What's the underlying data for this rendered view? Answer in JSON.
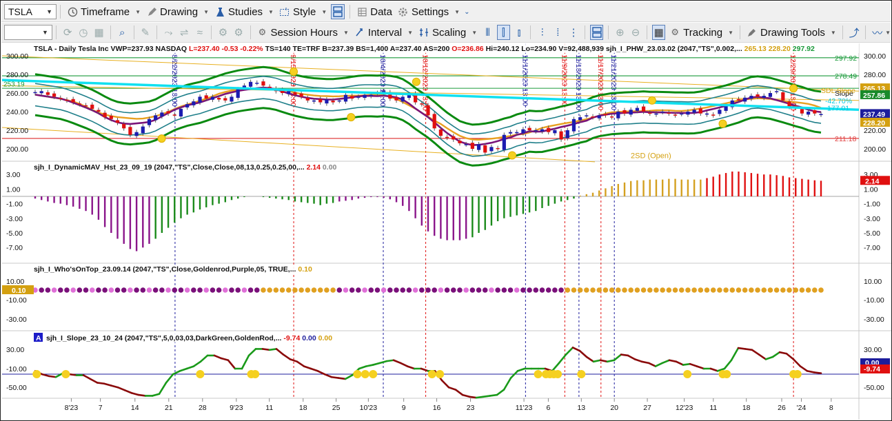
{
  "toolbar1": {
    "symbol": "TSLA",
    "menus": [
      {
        "label": "Timeframe",
        "icon": "clock-icon"
      },
      {
        "label": "Drawing",
        "icon": "pencil-icon"
      },
      {
        "label": "Studies",
        "icon": "studies-icon"
      },
      {
        "label": "Style",
        "icon": "style-icon"
      },
      {
        "label": "Data",
        "icon": "data-icon"
      },
      {
        "label": "Settings",
        "icon": "gear-icon"
      }
    ]
  },
  "toolbar2": {
    "session_hours": "Session Hours",
    "interval": "Interval",
    "scaling": "Scaling",
    "tracking": "Tracking",
    "drawing_tools": "Drawing Tools"
  },
  "price_pane": {
    "header": [
      {
        "t": "TSLA - Daily  Tesla Inc  VWP=237.93  NASDAQ",
        "c": "#111"
      },
      {
        "t": "L=237.40  -0.53  -0.22%",
        "c": "#e01010"
      },
      {
        "t": "TS=140  TE=TRF  B=237.39  BS=1,400  A=237.40  AS=200",
        "c": "#111"
      },
      {
        "t": "O=236.86",
        "c": "#e01010"
      },
      {
        "t": "Hi=240.12   Lo=234.90   V=92,488,939   sjh_I_PHW_23.03.02 (2047,\"TS\",0.002,...",
        "c": "#111"
      },
      {
        "t": "265.13",
        "c": "#d4a010"
      },
      {
        "t": "228.20",
        "c": "#d4a010"
      },
      {
        "t": "297.92",
        "c": "#1a9a3a"
      }
    ],
    "yticks": [
      "300.00",
      "280.00",
      "260.00",
      "240.00",
      "220.00",
      "200.00"
    ],
    "level_labels": [
      {
        "v": "297.92",
        "c": "#1a9a3a",
        "fg": "#1a9a3a"
      },
      {
        "v": "278.49",
        "c": "#1a9a3a",
        "fg": "#1a9a3a"
      },
      {
        "v": "211.18",
        "c": "#e04040",
        "fg": "#e04040"
      }
    ],
    "tags": [
      {
        "v": "265.13",
        "bg": "#d4a010",
        "fg": "#fff"
      },
      {
        "v": "257.86",
        "bg": "#1a8a2a",
        "fg": "#fff"
      },
      {
        "v": "237.49",
        "bg": "#1c1c9c",
        "fg": "#fff"
      },
      {
        "v": "228.20",
        "bg": "#d4a010",
        "fg": "#fff"
      }
    ],
    "side_notes": [
      {
        "t": "Slope",
        "c": "#111"
      },
      {
        "t": "SDL Slope",
        "c": "#d4a010"
      },
      {
        "t": "-42.70%",
        "c": "#00c8e0"
      },
      {
        "t": "177.01",
        "c": "#00c8e0"
      }
    ],
    "annotations": [
      {
        "t": "2SD (Open)",
        "c": "#d4a010"
      },
      {
        "t": "253.19",
        "c": "#1a9a3a"
      }
    ],
    "vlines": [
      {
        "t": "8/22/2023 13:00",
        "c": "#1c1c9c"
      },
      {
        "t": "9/15/2023 13:00",
        "c": "#e01010"
      },
      {
        "t": "10/4/2023 13:00",
        "c": "#1c1c9c"
      },
      {
        "t": "10/12/2023 13:00",
        "c": "#e01010"
      },
      {
        "t": "11/1/2023 13:00",
        "c": "#1c1c9c"
      },
      {
        "t": "11/9/2023 13:00",
        "c": "#e01010"
      },
      {
        "t": "11/13/2023 13:00",
        "c": "#1c1c9c"
      },
      {
        "t": "11/17/2023 13:00",
        "c": "#e01010"
      },
      {
        "t": "11/21/2023 13:00",
        "c": "#1c1c9c"
      },
      {
        "t": "12/29/2023 13:00",
        "c": "#e01010"
      }
    ]
  },
  "pane_mav": {
    "header": [
      {
        "t": "sjh_I_DynamicMAV_Hst_23_09_19 (2047,\"TS\",Close,Close,08,13,0.25,0.25,00,...",
        "c": "#111"
      },
      {
        "t": "2.14",
        "c": "#e01010"
      },
      {
        "t": "0.00",
        "c": "#888"
      }
    ],
    "yticks": [
      "3.00",
      "1.00",
      "-1.00",
      "-3.00",
      "-5.00",
      "-7.00"
    ],
    "tag": {
      "v": "2.14",
      "bg": "#e01010",
      "fg": "#fff"
    }
  },
  "pane_who": {
    "header": [
      {
        "t": "sjh_I_Who'sOnTop_23.09.14 (2047,\"TS\",Close,Goldenrod,Purple,05,  TRUE,...",
        "c": "#111"
      },
      {
        "t": "0.10",
        "c": "#d4a010"
      }
    ],
    "yticks": [
      "10.00",
      "-10.00",
      "-30.00"
    ],
    "tag": {
      "v": "0.10",
      "bg": "#d4a010",
      "fg": "#fff"
    }
  },
  "pane_slope": {
    "badge": "A",
    "header": [
      {
        "t": "sjh_I_Slope_23_10_24 (2047,\"TS\",5,0,03,03,DarkGreen,GoldenRod,...",
        "c": "#111"
      },
      {
        "t": "-9.74",
        "c": "#e01010"
      },
      {
        "t": "0.00",
        "c": "#1c1c9c"
      },
      {
        "t": "0.00",
        "c": "#d4a010"
      }
    ],
    "yticks": [
      "30.00",
      "-10.00",
      "-50.00"
    ],
    "tags": [
      {
        "v": "0.00",
        "bg": "#1c1c9c",
        "fg": "#fff"
      },
      {
        "v": "-9.74",
        "bg": "#e01010",
        "fg": "#fff"
      }
    ]
  },
  "xaxis": [
    "8'23",
    "7",
    "14",
    "21",
    "28",
    "9'23",
    "11",
    "18",
    "25",
    "10'23",
    "9",
    "16",
    "23",
    "11'23",
    "6",
    "13",
    "20",
    "27",
    "12'23",
    "11",
    "18",
    "26",
    "'24",
    "8"
  ],
  "chart_data": {
    "type": "candlestick",
    "symbol": "TSLA",
    "interval": "Daily",
    "last": 237.4,
    "open": 236.86,
    "high": 240.12,
    "low": 234.9,
    "volume": 92488939,
    "closes": [
      261,
      262,
      258,
      256,
      254,
      252,
      250,
      248,
      246,
      243,
      240,
      234,
      232,
      228,
      222,
      215,
      218,
      224,
      232,
      236,
      239,
      238,
      236,
      243,
      248,
      251,
      256,
      254,
      256,
      253,
      252,
      256,
      264,
      268,
      272,
      271,
      268,
      266,
      262,
      260,
      262,
      258,
      256,
      252,
      252,
      250,
      253,
      250,
      252,
      258,
      254,
      256,
      258,
      258,
      260,
      262,
      254,
      252,
      256,
      258,
      250,
      248,
      236,
      222,
      214,
      212,
      210,
      206,
      205,
      200,
      205,
      196,
      202,
      200,
      215,
      218,
      218,
      221,
      220,
      220,
      221,
      218,
      220,
      210,
      220,
      232,
      234,
      236,
      234,
      236,
      236,
      234,
      240,
      238,
      242,
      244,
      240,
      238,
      238,
      240,
      238,
      236,
      238,
      240,
      242,
      238,
      238,
      236,
      242,
      246,
      252,
      252,
      255,
      257,
      256,
      257,
      260,
      262,
      252,
      245,
      244,
      238,
      240,
      238,
      237.4
    ],
    "histogram": [
      -0.3,
      -0.5,
      -0.7,
      -0.9,
      -1.0,
      -1.2,
      -1.4,
      -1.7,
      -2.0,
      -2.5,
      -3.2,
      -4.2,
      -5.0,
      -5.8,
      -6.5,
      -7.2,
      -7.5,
      -7.0,
      -6.5,
      -5.8,
      -5.0,
      -4.3,
      -3.6,
      -3.0,
      -2.5,
      -2.2,
      -1.8,
      -1.5,
      -1.2,
      -1.0,
      -0.8,
      -0.5,
      -0.3,
      -0.1,
      0.0,
      0.0,
      -0.1,
      -0.2,
      -0.3,
      -0.4,
      -0.5,
      -0.7,
      -0.8,
      -0.9,
      -1.0,
      -1.2,
      -1.0,
      -0.9,
      -0.7,
      -0.6,
      -0.5,
      -0.3,
      -0.2,
      -0.1,
      -0.1,
      -0.2,
      -0.4,
      -0.8,
      -1.3,
      -2.0,
      -3.0,
      -4.0,
      -4.8,
      -5.4,
      -5.8,
      -6.0,
      -6.0,
      -6.0,
      -5.8,
      -5.6,
      -5.0,
      -4.6,
      -4.0,
      -3.4,
      -3.0,
      -2.8,
      -2.6,
      -2.4,
      -2.2,
      -2.0,
      -1.6,
      -1.3,
      -1.0,
      -0.7,
      -0.5,
      -0.3,
      0.1,
      0.3,
      0.5,
      0.8,
      1.1,
      1.4,
      1.7,
      1.9,
      2.1,
      2.2,
      2.2,
      2.3,
      2.3,
      2.3,
      2.4,
      2.4,
      2.3,
      2.3,
      2.3,
      2.3,
      2.5,
      2.7,
      3.0,
      3.2,
      3.4,
      3.4,
      3.3,
      3.2,
      3.1,
      3.0,
      3.0,
      2.9,
      2.8,
      2.6,
      2.5,
      2.4,
      2.3,
      2.2,
      2.14
    ],
    "slope": [
      -5,
      -12,
      -16,
      -18,
      -10,
      -12,
      -14,
      -14,
      -22,
      -30,
      -32,
      -36,
      -40,
      -46,
      -52,
      -56,
      -58,
      -58,
      -54,
      -30,
      -12,
      -5,
      0,
      5,
      15,
      28,
      28,
      22,
      18,
      0,
      0,
      28,
      42,
      42,
      40,
      42,
      30,
      20,
      15,
      5,
      0,
      -5,
      -12,
      -18,
      -20,
      -22,
      -14,
      0,
      5,
      8,
      12,
      16,
      18,
      12,
      5,
      0,
      0,
      -5,
      -5,
      -25,
      -40,
      -45,
      -56,
      -60,
      -62,
      -60,
      -58,
      -56,
      -45,
      -20,
      -5,
      0,
      0,
      0,
      0,
      -5,
      12,
      30,
      45,
      38,
      25,
      15,
      18,
      15,
      18,
      30,
      28,
      20,
      15,
      12,
      5,
      12,
      18,
      15,
      8,
      10,
      5,
      0,
      0,
      -5,
      0,
      18,
      44,
      42,
      40,
      30,
      20,
      25,
      35,
      32,
      20,
      5,
      -5,
      -8,
      -9.74
    ],
    "bands": {
      "upper": "green",
      "middle": "teal",
      "averages": [
        "purple",
        "goldenrod"
      ],
      "trend": "cyan"
    },
    "levels": [
      297.92,
      278.49,
      211.18
    ]
  }
}
